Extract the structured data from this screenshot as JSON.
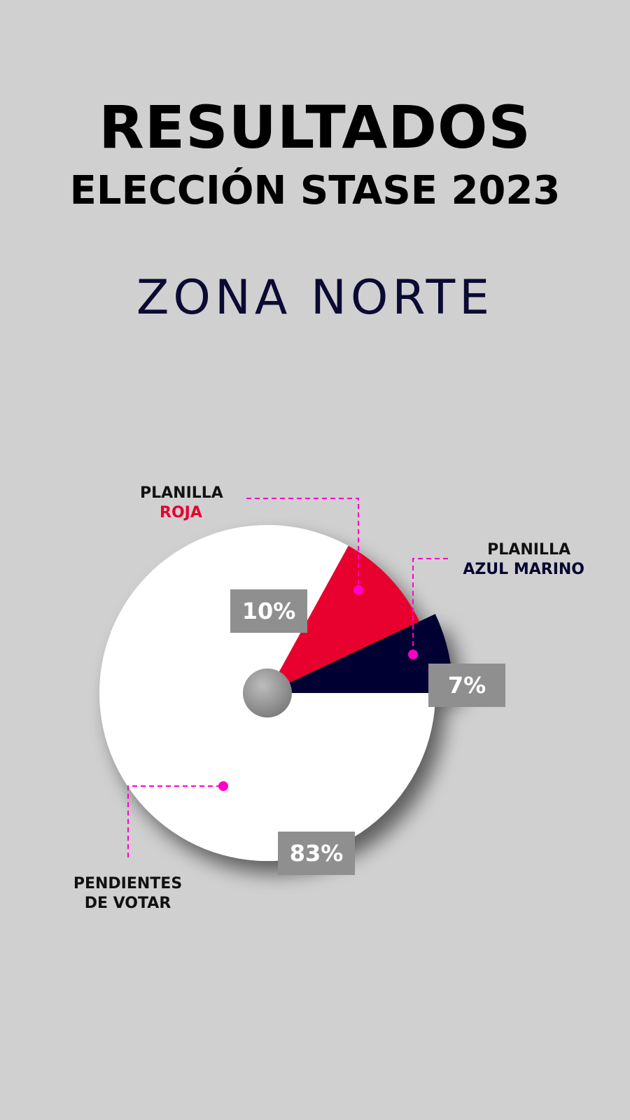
{
  "header": {
    "title": "RESULTADOS",
    "subtitle": "ELECCIÓN STASE 2023",
    "zone": "ZONA NORTE"
  },
  "chart_data": {
    "type": "pie",
    "slices": [
      {
        "label_line1": "PENDIENTES",
        "label_line2": "DE VOTAR",
        "value": 83,
        "value_label": "83%",
        "color": "#ffffff"
      },
      {
        "label_line1": "PLANILLA",
        "label_line2": "ROJA",
        "value": 10,
        "value_label": "10%",
        "color": "#e8002d"
      },
      {
        "label_line1": "PLANILLA",
        "label_line2": "AZUL MARINO",
        "value": 7,
        "value_label": "7%",
        "color": "#050530"
      }
    ],
    "leader_color": "#ff00c8",
    "hole_color": "#8a8a8a"
  }
}
